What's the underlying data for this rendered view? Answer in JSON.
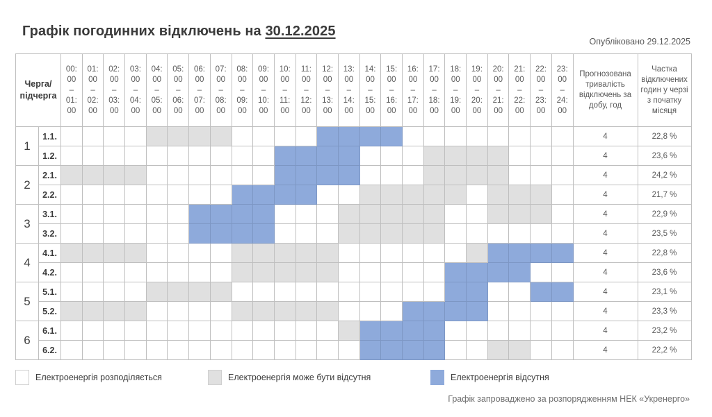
{
  "header": {
    "title_prefix": "Графік погодинних відключень на",
    "title_date": "30.12.2025",
    "published": "Опубліковано 29.12.2025"
  },
  "table": {
    "queue_header": "Черга/ підчерга",
    "hours": [
      {
        "from": "00: 00",
        "to": "01: 00"
      },
      {
        "from": "01: 00",
        "to": "02: 00"
      },
      {
        "from": "02: 00",
        "to": "03: 00"
      },
      {
        "from": "03: 00",
        "to": "04: 00"
      },
      {
        "from": "04: 00",
        "to": "05: 00"
      },
      {
        "from": "05: 00",
        "to": "06: 00"
      },
      {
        "from": "06: 00",
        "to": "07: 00"
      },
      {
        "from": "07: 00",
        "to": "08: 00"
      },
      {
        "from": "08: 00",
        "to": "09: 00"
      },
      {
        "from": "09: 00",
        "to": "10: 00"
      },
      {
        "from": "10: 00",
        "to": "11: 00"
      },
      {
        "from": "11: 00",
        "to": "12: 00"
      },
      {
        "from": "12: 00",
        "to": "13: 00"
      },
      {
        "from": "13: 00",
        "to": "14: 00"
      },
      {
        "from": "14: 00",
        "to": "15: 00"
      },
      {
        "from": "15: 00",
        "to": "16: 00"
      },
      {
        "from": "16: 00",
        "to": "17: 00"
      },
      {
        "from": "17: 00",
        "to": "18: 00"
      },
      {
        "from": "18: 00",
        "to": "19: 00"
      },
      {
        "from": "19: 00",
        "to": "20: 00"
      },
      {
        "from": "20: 00",
        "to": "21: 00"
      },
      {
        "from": "21: 00",
        "to": "22: 00"
      },
      {
        "from": "22: 00",
        "to": "23: 00"
      },
      {
        "from": "23: 00",
        "to": "24: 00"
      }
    ],
    "duration_header": "Прогнозована тривалість відключень за добу, год",
    "share_header": "Частка відключених годин у черзі з початку місяця",
    "state_legend": {
      "0": "Електроенергія розподіляється",
      "1": "Електроенергія може бути відсутня",
      "2": "Електроенергія відсутня"
    },
    "rows": [
      {
        "queue": "1",
        "sub": "1.1.",
        "states": "000011110000222200000000",
        "duration": "4",
        "share": "22,8 %"
      },
      {
        "queue": "1",
        "sub": "1.2.",
        "states": "000000000022220001111000",
        "duration": "4",
        "share": "23,6 %"
      },
      {
        "queue": "2",
        "sub": "2.1.",
        "states": "111100000022220001111000",
        "duration": "4",
        "share": "24,2 %"
      },
      {
        "queue": "2",
        "sub": "2.2.",
        "states": "000000002222001111101110",
        "duration": "4",
        "share": "21,7 %"
      },
      {
        "queue": "3",
        "sub": "3.1.",
        "states": "000000222200011111001110",
        "duration": "4",
        "share": "22,9 %"
      },
      {
        "queue": "3",
        "sub": "3.2.",
        "states": "000000222200011111000000",
        "duration": "4",
        "share": "23,5 %"
      },
      {
        "queue": "4",
        "sub": "4.1.",
        "states": "111100001111100000012222",
        "duration": "4",
        "share": "22,8 %"
      },
      {
        "queue": "4",
        "sub": "4.2.",
        "states": "000000001111100000222200",
        "duration": "4",
        "share": "23,6 %"
      },
      {
        "queue": "5",
        "sub": "5.1.",
        "states": "000011110000000000220022",
        "duration": "4",
        "share": "23,1 %"
      },
      {
        "queue": "5",
        "sub": "5.2.",
        "states": "111100001111100022220000",
        "duration": "4",
        "share": "23,3 %"
      },
      {
        "queue": "6",
        "sub": "6.1.",
        "states": "000000000000012222000000",
        "duration": "4",
        "share": "23,2 %"
      },
      {
        "queue": "6",
        "sub": "6.2.",
        "states": "000000000000002222001100",
        "duration": "4",
        "share": "22,2 %"
      }
    ]
  },
  "legend": {
    "items": [
      {
        "label": "Електроенергія розподіляється",
        "color": "#ffffff"
      },
      {
        "label": "Електроенергія може бути відсутня",
        "color": "#e0e0e0"
      },
      {
        "label": "Електроенергія відсутня",
        "color": "#8eaadb"
      }
    ]
  },
  "footer": "Графік запроваджено за розпорядженням НЕК «Укренерго»"
}
